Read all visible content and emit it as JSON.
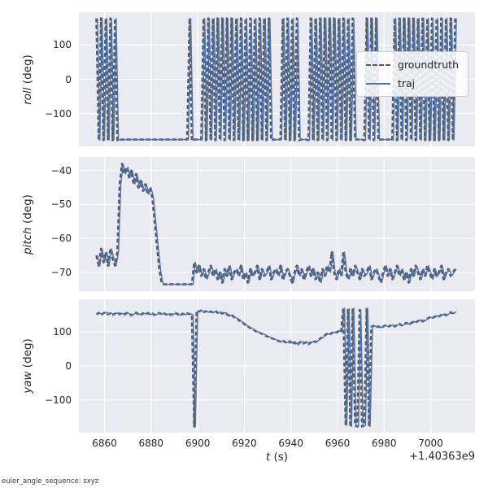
{
  "figure": {
    "xlabel_var": "t",
    "xlabel_unit": " (s)",
    "offset_text": "+1.40363e9",
    "footnote": "euler_angle_sequence: sxyz",
    "colors": {
      "axes_bg": "#eaeaf2",
      "grid": "#ffffff",
      "traj": "#4c72b0",
      "groundtruth": "#5a5a5a",
      "text": "#262626"
    }
  },
  "chart_data": [
    {
      "type": "line",
      "ylabel_var": "roll",
      "ylabel_unit": " (deg)",
      "xlim": [
        6849,
        7019
      ],
      "ylim": [
        -196,
        196
      ],
      "xticks": [
        6860,
        6880,
        6900,
        6920,
        6940,
        6960,
        6980,
        7000
      ],
      "yticks": [
        -100,
        0,
        100
      ],
      "x_start": 6857,
      "x_step": 1,
      "x_count": 155,
      "show_xticklabels": false,
      "series": [
        {
          "name": "groundtruth",
          "color": "#5a5a5a",
          "width": 2.6,
          "dash": "5 3",
          "x_offset": -0.5,
          "same_as": "traj"
        },
        {
          "name": "traj",
          "color": "#4c72b0",
          "width": 1.4,
          "values": [
            178,
            -178,
            178,
            -178,
            178,
            -178,
            178,
            -178,
            178,
            -178,
            -176,
            -176,
            -176,
            -176,
            -176,
            -176,
            -176,
            -176,
            -176,
            -176,
            -176,
            -176,
            -176,
            -176,
            -176,
            -176,
            -176,
            -176,
            -176,
            -176,
            -176,
            -176,
            -176,
            -176,
            -176,
            -176,
            -176,
            -176,
            -176,
            -176,
            178,
            -178,
            -176,
            -176,
            -176,
            -176,
            178,
            -178,
            178,
            -178,
            178,
            -178,
            178,
            -178,
            178,
            -178,
            178,
            -178,
            178,
            -178,
            178,
            -178,
            178,
            -178,
            178,
            -178,
            178,
            -178,
            178,
            -178,
            178,
            -178,
            178,
            -178,
            178,
            -178,
            -176,
            -176,
            -176,
            -176,
            178,
            -178,
            178,
            -178,
            178,
            -178,
            178,
            -178,
            -176,
            -176,
            -176,
            -178,
            178,
            -178,
            178,
            -178,
            178,
            -178,
            178,
            -178,
            178,
            -178,
            178,
            -178,
            178,
            -178,
            178,
            -178,
            178,
            -178,
            178,
            -176,
            -176,
            -176,
            -176,
            -178,
            178,
            -178,
            178,
            -178,
            178,
            -178,
            -176,
            -176,
            -176,
            -176,
            -176,
            -178,
            178,
            -178,
            178,
            -178,
            178,
            -178,
            178,
            -178,
            178,
            -178,
            178,
            -178,
            178,
            -178,
            178,
            -178,
            178,
            -178,
            178,
            -178,
            178,
            -178,
            178,
            -178,
            178,
            -178,
            178
          ]
        }
      ]
    },
    {
      "type": "line",
      "ylabel_var": "pitch",
      "ylabel_unit": " (deg)",
      "xlim": [
        6849,
        7019
      ],
      "ylim": [
        -75.5,
        -36
      ],
      "xticks": [
        6860,
        6880,
        6900,
        6920,
        6940,
        6960,
        6980,
        7000
      ],
      "yticks": [
        -40,
        -50,
        -60,
        -70
      ],
      "x_start": 6857,
      "x_step": 1,
      "x_count": 155,
      "show_xticklabels": false,
      "series": [
        {
          "name": "groundtruth",
          "color": "#5a5a5a",
          "width": 2.6,
          "dash": "5 3",
          "x_offset": -0.5,
          "same_as": "traj"
        },
        {
          "name": "traj",
          "color": "#4c72b0",
          "width": 1.4,
          "values": [
            -65,
            -68,
            -63,
            -67,
            -64,
            -68,
            -63,
            -66,
            -68,
            -64,
            -44,
            -38,
            -41,
            -39,
            -42,
            -40,
            -44,
            -41,
            -45,
            -43,
            -46,
            -44,
            -47,
            -45,
            -48,
            -55,
            -62,
            -69,
            -73,
            -73.5,
            -73.5,
            -73.5,
            -73.5,
            -73.5,
            -73.5,
            -73.5,
            -73.5,
            -73.5,
            -73.5,
            -73.5,
            -73.5,
            -73.5,
            -67,
            -70,
            -68,
            -71,
            -69,
            -72,
            -70,
            -68,
            -71,
            -69,
            -72,
            -70,
            -73,
            -69,
            -71,
            -68,
            -72,
            -70,
            -69,
            -71,
            -68,
            -72,
            -70,
            -73,
            -69,
            -71,
            -70,
            -68,
            -72,
            -69,
            -71,
            -70,
            -68,
            -72,
            -70,
            -69,
            -71,
            -68,
            -72,
            -70,
            -69,
            -71,
            -73,
            -70,
            -68,
            -71,
            -69,
            -72,
            -70,
            -68,
            -71,
            -69,
            -72,
            -70,
            -73,
            -69,
            -71,
            -68,
            -70,
            -64,
            -70,
            -72,
            -69,
            -71,
            -64,
            -70,
            -72,
            -69,
            -71,
            -68,
            -70,
            -72,
            -69,
            -71,
            -70,
            -68,
            -72,
            -70,
            -69,
            -71,
            -73,
            -70,
            -68,
            -71,
            -69,
            -72,
            -70,
            -68,
            -71,
            -69,
            -72,
            -70,
            -73,
            -69,
            -71,
            -68,
            -70,
            -72,
            -69,
            -71,
            -68,
            -70,
            -72,
            -69,
            -71,
            -70,
            -68,
            -72,
            -70,
            -69,
            -71,
            -70,
            -69
          ]
        }
      ]
    },
    {
      "type": "line",
      "ylabel_var": "yaw",
      "ylabel_unit": " (deg)",
      "xlim": [
        6849,
        7019
      ],
      "ylim": [
        -196,
        196
      ],
      "xticks": [
        6860,
        6880,
        6900,
        6920,
        6940,
        6960,
        6980,
        7000
      ],
      "yticks": [
        -100,
        0,
        100
      ],
      "x_start": 6857,
      "x_step": 1,
      "x_count": 155,
      "show_xticklabels": true,
      "series": [
        {
          "name": "groundtruth",
          "color": "#5a5a5a",
          "width": 2.6,
          "dash": "5 3",
          "x_offset": -0.5,
          "same_as": "traj"
        },
        {
          "name": "traj",
          "color": "#4c72b0",
          "width": 1.4,
          "values": [
            152,
            156,
            150,
            155,
            158,
            152,
            155,
            150,
            154,
            157,
            152,
            155,
            151,
            156,
            153,
            149,
            154,
            157,
            152,
            150,
            155,
            152,
            156,
            151,
            154,
            150,
            153,
            156,
            152,
            155,
            151,
            154,
            150,
            153,
            156,
            152,
            149,
            154,
            151,
            155,
            153,
            150,
            -178,
            162,
            160,
            163,
            158,
            161,
            157,
            160,
            158,
            162,
            156,
            159,
            154,
            157,
            152,
            148,
            150,
            144,
            140,
            136,
            130,
            126,
            120,
            116,
            112,
            108,
            104,
            100,
            98,
            95,
            92,
            88,
            85,
            82,
            80,
            76,
            74,
            72,
            75,
            70,
            68,
            73,
            65,
            70,
            62,
            68,
            72,
            66,
            70,
            64,
            69,
            74,
            70,
            76,
            80,
            85,
            90,
            95,
            92,
            97,
            100,
            98,
            103,
            100,
            170,
            -175,
            168,
            -178,
            170,
            -175,
            -178,
            165,
            -178,
            -175,
            168,
            -178,
            115,
            118,
            113,
            117,
            112,
            116,
            119,
            114,
            118,
            121,
            116,
            120,
            124,
            119,
            123,
            127,
            122,
            126,
            130,
            128,
            132,
            136,
            131,
            135,
            139,
            143,
            140,
            144,
            148,
            145,
            150,
            153,
            149,
            154,
            158,
            155,
            160
          ]
        }
      ]
    }
  ]
}
